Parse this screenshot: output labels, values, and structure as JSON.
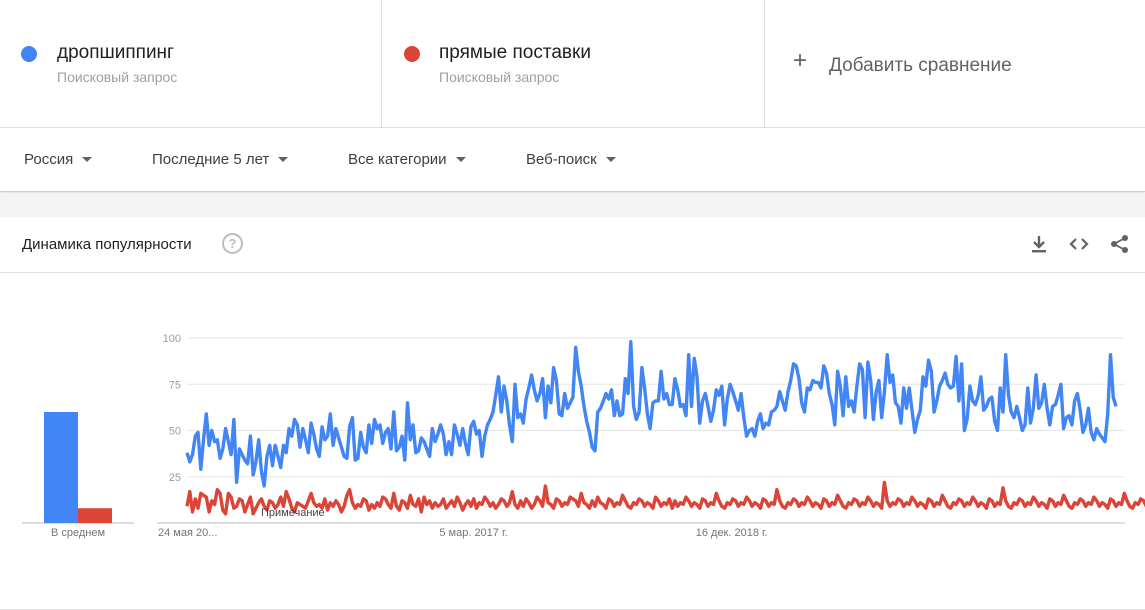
{
  "terms": [
    {
      "name": "дропшиппинг",
      "type": "Поисковый запрос",
      "color": "#4285f4"
    },
    {
      "name": "прямые поставки",
      "type": "Поисковый запрос",
      "color": "#db4437"
    }
  ],
  "add_compare": "Добавить сравнение",
  "filters": {
    "region": "Россия",
    "period": "Последние 5 лет",
    "category": "Все категории",
    "search_type": "Веб-поиск"
  },
  "card": {
    "title": "Динамика популярности",
    "help": "?"
  },
  "icons": [
    "download-icon",
    "embed-icon",
    "share-icon",
    "help-icon"
  ],
  "chart_data": {
    "type": "line",
    "title": "",
    "y_ticks": [
      25,
      50,
      75,
      100
    ],
    "ylim": [
      0,
      100
    ],
    "x_labels": [
      "24 мая 20...",
      "5 мар. 2017 г.",
      "16 дек. 2018 г."
    ],
    "x_label_weeks": [
      0,
      93,
      186
    ],
    "grid": true,
    "average": {
      "label": "В среднем",
      "values": [
        60,
        8
      ]
    },
    "note": "Примечание",
    "series": [
      {
        "name": "дропшиппинг",
        "color": "#4285f4",
        "values": [
          38,
          33,
          37,
          47,
          49,
          29,
          45,
          59,
          42,
          50,
          44,
          45,
          35,
          40,
          51,
          44,
          37,
          56,
          22,
          40,
          37,
          34,
          32,
          47,
          26,
          33,
          45,
          28,
          20,
          36,
          42,
          31,
          42,
          36,
          30,
          42,
          38,
          51,
          47,
          56,
          53,
          41,
          51,
          45,
          38,
          54,
          48,
          40,
          36,
          52,
          45,
          47,
          59,
          42,
          51,
          46,
          41,
          36,
          35,
          52,
          57,
          34,
          35,
          49,
          41,
          38,
          53,
          43,
          56,
          51,
          53,
          43,
          49,
          51,
          40,
          60,
          39,
          41,
          47,
          34,
          65,
          45,
          53,
          38,
          39,
          46,
          44,
          40,
          36,
          51,
          44,
          48,
          53,
          48,
          37,
          44,
          37,
          53,
          48,
          42,
          51,
          43,
          37,
          52,
          55,
          48,
          50,
          36,
          47,
          53,
          56,
          60,
          69,
          79,
          60,
          74,
          66,
          53,
          44,
          75,
          57,
          59,
          54,
          67,
          73,
          80,
          72,
          66,
          70,
          78,
          57,
          74,
          65,
          84,
          77,
          59,
          58,
          70,
          62,
          65,
          68,
          95,
          82,
          74,
          63,
          55,
          49,
          41,
          39,
          60,
          62,
          66,
          70,
          67,
          72,
          58,
          66,
          58,
          59,
          78,
          70,
          98,
          63,
          56,
          60,
          84,
          73,
          59,
          51,
          65,
          66,
          66,
          82,
          67,
          70,
          64,
          64,
          78,
          72,
          63,
          64,
          58,
          91,
          63,
          89,
          79,
          54,
          66,
          70,
          63,
          55,
          61,
          72,
          69,
          74,
          53,
          67,
          75,
          71,
          66,
          61,
          70,
          57,
          47,
          50,
          51,
          47,
          55,
          59,
          51,
          54,
          53,
          60,
          61,
          63,
          71,
          66,
          61,
          71,
          77,
          86,
          85,
          78,
          65,
          60,
          73,
          72,
          77,
          76,
          76,
          73,
          85,
          81,
          70,
          64,
          53,
          82,
          74,
          58,
          79,
          63,
          66,
          60,
          74,
          86,
          83,
          57,
          87,
          77,
          56,
          71,
          77,
          57,
          71,
          91,
          76,
          80,
          65,
          63,
          54,
          73,
          62,
          73,
          61,
          49,
          56,
          61,
          79,
          74,
          88,
          82,
          60,
          66,
          74,
          77,
          81,
          75,
          73,
          74,
          90,
          66,
          86,
          50,
          56,
          74,
          66,
          64,
          69,
          79,
          61,
          63,
          67,
          68,
          55,
          50,
          73,
          60,
          91,
          69,
          60,
          57,
          63,
          57,
          50,
          53,
          73,
          54,
          62,
          80,
          62,
          65,
          75,
          62,
          53,
          63,
          64,
          69,
          75,
          51,
          57,
          58,
          53,
          66,
          70,
          61,
          49,
          53,
          62,
          49,
          45,
          51,
          48,
          46,
          44,
          59,
          91,
          68,
          63
        ]
      },
      {
        "name": "прямые поставки",
        "color": "#db4437",
        "values": [
          9,
          17,
          6,
          13,
          8,
          16,
          15,
          14,
          6,
          12,
          10,
          18,
          16,
          7,
          5,
          16,
          14,
          8,
          9,
          13,
          12,
          6,
          10,
          14,
          5,
          8,
          11,
          13,
          9,
          7,
          12,
          11,
          8,
          10,
          14,
          9,
          17,
          13,
          8,
          6,
          11,
          10,
          9,
          8,
          12,
          16,
          11,
          9,
          10,
          8,
          13,
          7,
          11,
          9,
          12,
          10,
          6,
          9,
          15,
          18,
          11,
          8,
          10,
          9,
          13,
          12,
          7,
          10,
          8,
          11,
          9,
          14,
          13,
          10,
          8,
          16,
          9,
          7,
          12,
          11,
          8,
          15,
          10,
          9,
          13,
          6,
          14,
          10,
          12,
          8,
          11,
          9,
          10,
          13,
          8,
          10,
          12,
          9,
          14,
          11,
          7,
          10,
          12,
          9,
          13,
          8,
          11,
          10,
          14,
          12,
          9,
          11,
          8,
          10,
          13,
          12,
          9,
          11,
          17,
          10,
          8,
          12,
          9,
          13,
          11,
          8,
          10,
          14,
          12,
          9,
          20,
          11,
          10,
          8,
          13,
          12,
          9,
          11,
          10,
          14,
          13,
          12,
          9,
          16,
          11,
          10,
          8,
          12,
          9,
          14,
          11,
          10,
          8,
          13,
          12,
          9,
          11,
          10,
          15,
          12,
          9,
          8,
          11,
          10,
          13,
          12,
          9,
          11,
          10,
          8,
          14,
          12,
          9,
          11,
          10,
          13,
          8,
          12,
          9,
          11,
          10,
          14,
          12,
          9,
          11,
          10,
          8,
          13,
          12,
          9,
          11,
          10,
          16,
          12,
          9,
          8,
          11,
          10,
          13,
          12,
          9,
          11,
          10,
          14,
          12,
          9,
          11,
          10,
          8,
          13,
          12,
          9,
          11,
          10,
          18,
          12,
          9,
          8,
          11,
          10,
          13,
          12,
          9,
          11,
          10,
          14,
          12,
          9,
          11,
          10,
          8,
          13,
          12,
          9,
          11,
          10,
          15,
          12,
          9,
          8,
          11,
          10,
          13,
          12,
          9,
          11,
          10,
          14,
          12,
          9,
          11,
          10,
          8,
          22,
          12,
          9,
          11,
          10,
          13,
          12,
          9,
          11,
          10,
          14,
          12,
          9,
          11,
          10,
          8,
          13,
          12,
          9,
          11,
          10,
          15,
          12,
          9,
          8,
          11,
          10,
          13,
          12,
          9,
          11,
          10,
          14,
          12,
          9,
          11,
          10,
          8,
          13,
          12,
          9,
          11,
          10,
          19,
          12,
          9,
          8,
          11,
          10,
          13,
          12,
          9,
          11,
          10,
          14,
          12,
          9,
          11,
          10,
          8,
          13,
          12,
          9,
          11,
          10,
          15,
          12,
          9,
          8,
          11,
          10,
          13,
          12,
          9,
          11,
          10,
          14,
          12,
          9,
          11,
          10,
          8,
          13,
          12,
          9,
          11,
          10,
          16,
          12,
          9,
          8,
          11,
          10,
          13,
          12,
          9,
          6,
          4
        ]
      }
    ]
  }
}
